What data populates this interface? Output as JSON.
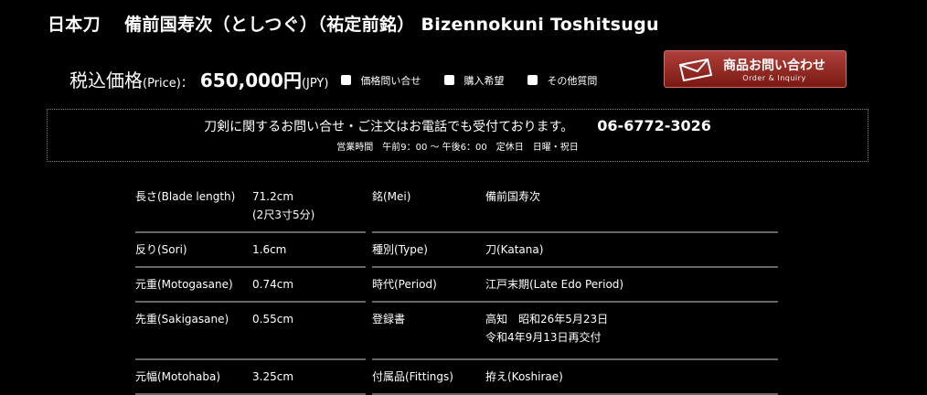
{
  "title": "日本刀　 備前国寿次（としつぐ）（祐定前銘） Bizennokuni Toshitsugu",
  "price": {
    "label": "税込価格",
    "label_en": "(Price)：",
    "value": "650,000円",
    "currency": "(JPY)"
  },
  "checkboxes": [
    {
      "label": "価格問い合せ",
      "checked": false
    },
    {
      "label": "購入希望",
      "checked": false
    },
    {
      "label": "その他質問",
      "checked": false
    }
  ],
  "order_button": {
    "jp": "商品お問い合わせ",
    "en": "Order & Inquiry",
    "icon": "envelope-icon"
  },
  "notice": {
    "text": "刀剣に関するお問い合せ・ご注文はお電話でも受付ております。",
    "phone": "06-6772-3026",
    "hours": "営業時間　午前9：00 ～ 午後6：00　定休日　日曜・祝日"
  },
  "specs": [
    {
      "l1": "長さ(Blade length)",
      "v1": [
        "71.2cm",
        "(2尺3寸5分)"
      ],
      "l2": "銘(Mei)",
      "v2": [
        "備前国寿次"
      ]
    },
    {
      "l1": "反り(Sori)",
      "v1": [
        "1.6cm"
      ],
      "l2": "種別(Type)",
      "v2": [
        "刀(Katana)"
      ]
    },
    {
      "l1": "元重(Motogasane)",
      "v1": [
        "0.74cm"
      ],
      "l2": "時代(Period)",
      "v2": [
        "江戸末期(Late Edo Period)"
      ]
    },
    {
      "l1": "先重(Sakigasane)",
      "v1": [
        "0.55cm"
      ],
      "l2": "登録書",
      "v2": [
        "高知　昭和26年5月23日",
        "令和4年9月13日再交付"
      ]
    },
    {
      "l1": "元幅(Motohaba)",
      "v1": [
        "3.25cm"
      ],
      "l2": "付属品(Fittings)",
      "v2": [
        "拵え(Koshirae)"
      ]
    }
  ]
}
